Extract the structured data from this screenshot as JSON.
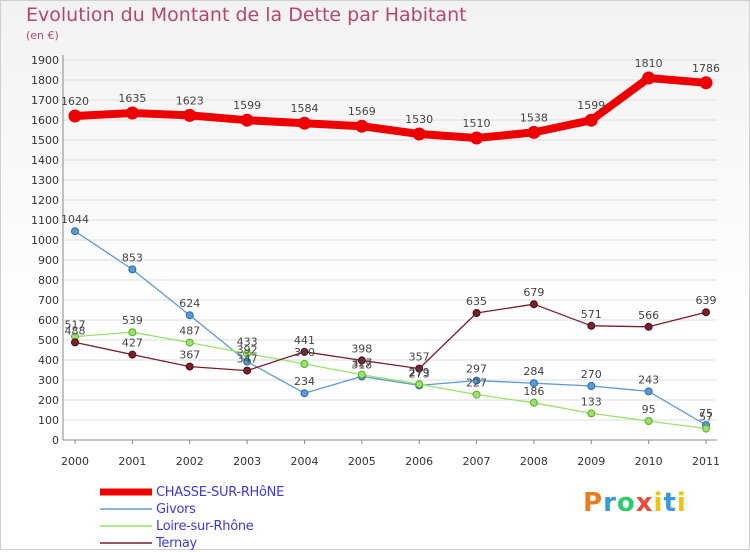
{
  "chart_data": {
    "type": "line",
    "title": "Evolution du Montant de la Dette par Habitant",
    "subtitle": "(en €)",
    "x": [
      "2000",
      "2001",
      "2002",
      "2003",
      "2004",
      "2005",
      "2006",
      "2007",
      "2008",
      "2009",
      "2010",
      "2011"
    ],
    "ylim": [
      0,
      1900
    ],
    "yticks": [
      0,
      100,
      200,
      300,
      400,
      500,
      600,
      700,
      800,
      900,
      1000,
      1100,
      1200,
      1300,
      1400,
      1500,
      1600,
      1700,
      1800,
      1900
    ],
    "grid": "horizontal",
    "legend_position": "bottom-left",
    "series": [
      {
        "name": "CHASSE-SUR-RHôNE",
        "color": "#ee0000",
        "values": [
          1620,
          1635,
          1623,
          1599,
          1584,
          1569,
          1530,
          1510,
          1538,
          1599,
          1810,
          1786
        ]
      },
      {
        "name": "Givors",
        "color": "#5b9bd5",
        "values": [
          1044,
          853,
          624,
          392,
          234,
          318,
          273,
          297,
          284,
          270,
          243,
          75
        ]
      },
      {
        "name": "Loire-sur-Rhône",
        "color": "#99e26b",
        "values": [
          517,
          539,
          487,
          433,
          380,
          327,
          279,
          227,
          186,
          133,
          95,
          57
        ]
      },
      {
        "name": "Ternay",
        "color": "#7a1f2b",
        "values": [
          488,
          427,
          367,
          347,
          441,
          398,
          357,
          635,
          679,
          571,
          566,
          639
        ]
      }
    ]
  },
  "logo": {
    "letters": [
      "P",
      "r",
      "o",
      "x",
      "i",
      "t",
      "i"
    ]
  }
}
